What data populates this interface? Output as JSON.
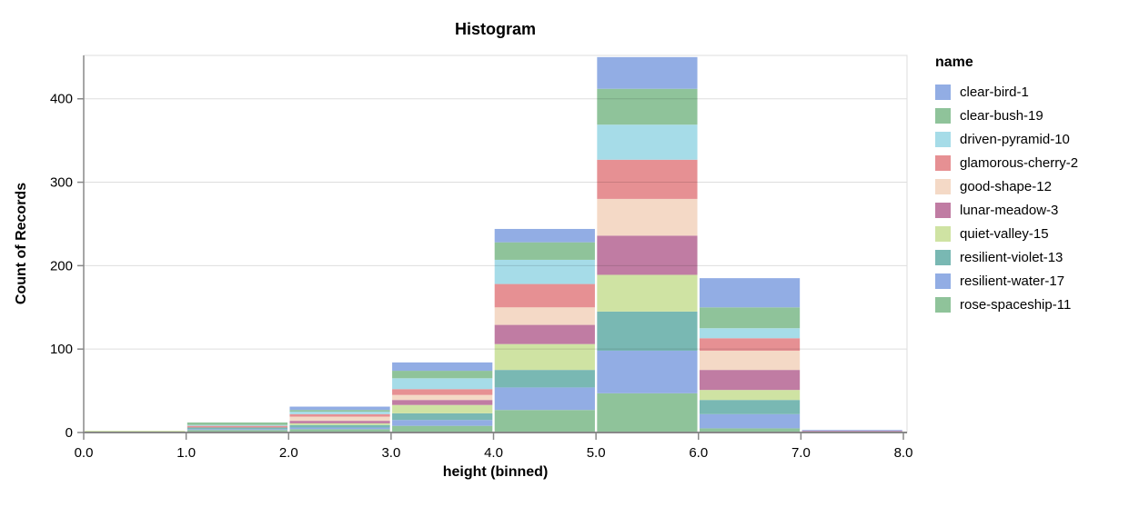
{
  "title": "Histogram",
  "axes": {
    "x": {
      "title": "height (binned)",
      "tick_labels": [
        "0.0",
        "1.0",
        "2.0",
        "3.0",
        "4.0",
        "5.0",
        "6.0",
        "7.0",
        "8.0"
      ]
    },
    "y": {
      "title": "Count of Records",
      "tick_labels": [
        "0",
        "100",
        "200",
        "300",
        "400"
      ],
      "tick_values": [
        0,
        100,
        200,
        300,
        400
      ]
    }
  },
  "legend": {
    "title": "name",
    "position": "right"
  },
  "style": {
    "grid_color": "rgba(0,0,0,0.13)",
    "frame_color": "#dddddd",
    "axis_color": "#888888",
    "background": "#ffffff"
  },
  "chart_data": {
    "type": "bar",
    "subtype": "stacked-histogram",
    "title": "Histogram",
    "xlabel": "height (binned)",
    "ylabel": "Count of Records",
    "bin_edges": [
      0,
      1,
      2,
      3,
      4,
      5,
      6,
      7,
      8
    ],
    "bin_labels": [
      "0-1",
      "1-2",
      "2-3",
      "3-4",
      "4-5",
      "5-6",
      "6-7",
      "7-8"
    ],
    "series": [
      {
        "name": "clear-bird-1",
        "color": "#92ade4",
        "values": [
          0,
          0,
          4,
          10,
          16,
          38,
          35,
          1
        ]
      },
      {
        "name": "clear-bush-19",
        "color": "#8fc39a",
        "values": [
          0,
          3,
          2,
          9,
          21,
          43,
          25,
          0
        ]
      },
      {
        "name": "driven-pyramid-10",
        "color": "#a6dce8",
        "values": [
          0,
          1,
          3,
          13,
          29,
          42,
          12,
          0
        ]
      },
      {
        "name": "glamorous-cherry-2",
        "color": "#e69093",
        "values": [
          0,
          2,
          3,
          7,
          28,
          47,
          15,
          0
        ]
      },
      {
        "name": "good-shape-12",
        "color": "#f4d9c6",
        "values": [
          0,
          0,
          5,
          6,
          21,
          44,
          23,
          0
        ]
      },
      {
        "name": "lunar-meadow-3",
        "color": "#c07ca3",
        "values": [
          0,
          0,
          3,
          6,
          23,
          47,
          24,
          1
        ]
      },
      {
        "name": "quiet-valley-15",
        "color": "#cfe3a3",
        "values": [
          2,
          0,
          2,
          10,
          31,
          44,
          12,
          0
        ]
      },
      {
        "name": "resilient-violet-13",
        "color": "#79b8b3",
        "values": [
          0,
          2,
          3,
          8,
          21,
          47,
          17,
          0
        ]
      },
      {
        "name": "resilient-water-17",
        "color": "#92ade4",
        "values": [
          0,
          1,
          2,
          7,
          27,
          51,
          17,
          1
        ]
      },
      {
        "name": "rose-spaceship-11",
        "color": "#8fc39a",
        "values": [
          0,
          3,
          4,
          8,
          27,
          47,
          5,
          0
        ]
      }
    ],
    "bin_totals": [
      2,
      12,
      31,
      84,
      244,
      450,
      185,
      3
    ],
    "stack_order": "first-series-on-top",
    "xticks": [
      0,
      1,
      2,
      3,
      4,
      5,
      6,
      7,
      8
    ],
    "yticks": [
      0,
      100,
      200,
      300,
      400
    ],
    "xlim": [
      0,
      8.03
    ],
    "ylim": [
      0,
      452
    ],
    "grid": true,
    "legend_position": "right"
  }
}
